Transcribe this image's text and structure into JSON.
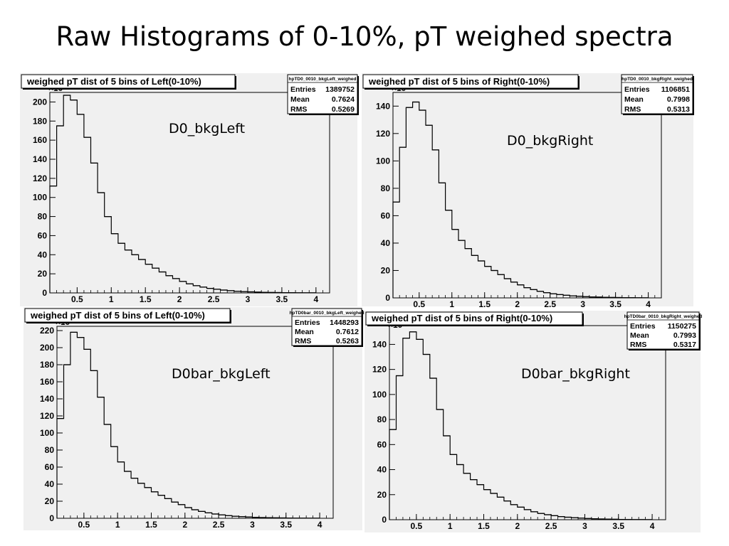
{
  "slide": {
    "title": "Raw Histograms of 0-10%, pT weighed spectra"
  },
  "chart_data": [
    {
      "type": "histogram",
      "title": "weighed pT dist of 5 bins of Left(0-10%)",
      "annotation": "D0_bkgLeft",
      "stats": {
        "name": "hpTD0_0010_bkgLeft_weighed",
        "entries": "1389752",
        "mean": "0.7624",
        "rms": "0.5269"
      },
      "y_multiplier": "×10³",
      "xlim": [
        0.1,
        4.2
      ],
      "ylim": [
        0,
        210
      ],
      "xticks": [
        0.5,
        1,
        1.5,
        2,
        2.5,
        3,
        3.5,
        4
      ],
      "yticks": [
        0,
        20,
        40,
        60,
        80,
        100,
        120,
        140,
        160,
        180,
        200
      ],
      "bin_edges": [
        0.1,
        0.2,
        0.3,
        0.4,
        0.5,
        0.6,
        0.7,
        0.8,
        0.9,
        1.0,
        1.1,
        1.2,
        1.3,
        1.4,
        1.5,
        1.6,
        1.7,
        1.8,
        1.9,
        2.0,
        2.1,
        2.2,
        2.3,
        2.4,
        2.5,
        2.6,
        2.7,
        2.8,
        2.9,
        3.0,
        3.1,
        3.2,
        3.3,
        3.4,
        3.5,
        3.6,
        3.7,
        3.8,
        3.9,
        4.0
      ],
      "values": [
        112,
        175,
        207,
        202,
        187,
        163,
        136,
        105,
        80,
        62,
        52,
        45,
        40,
        35,
        30,
        26,
        22,
        18,
        15,
        12,
        9.5,
        7.5,
        6,
        4.8,
        3.8,
        3,
        2.3,
        1.8,
        1.4,
        1.1,
        0.8,
        0.6,
        0.45,
        0.35,
        0.25,
        0.2,
        0.15,
        0.1,
        0.08
      ]
    },
    {
      "type": "histogram",
      "title": "weighed pT dist of 5 bins of Right(0-10%)",
      "annotation": "D0_bkgRight",
      "stats": {
        "name": "hpTD0_0010_bkgRight_weighed",
        "entries": "1106851",
        "mean": "0.7998",
        "rms": "0.5313"
      },
      "y_multiplier": "×10³",
      "xlim": [
        0.1,
        4.2
      ],
      "ylim": [
        0,
        150
      ],
      "xticks": [
        0.5,
        1,
        1.5,
        2,
        2.5,
        3,
        3.5,
        4
      ],
      "yticks": [
        0,
        20,
        40,
        60,
        80,
        100,
        120,
        140
      ],
      "bin_edges": [
        0.1,
        0.2,
        0.3,
        0.4,
        0.5,
        0.6,
        0.7,
        0.8,
        0.9,
        1.0,
        1.1,
        1.2,
        1.3,
        1.4,
        1.5,
        1.6,
        1.7,
        1.8,
        1.9,
        2.0,
        2.1,
        2.2,
        2.3,
        2.4,
        2.5,
        2.6,
        2.7,
        2.8,
        2.9,
        3.0,
        3.1,
        3.2,
        3.3,
        3.4,
        3.5,
        3.6,
        3.7,
        3.8,
        3.9,
        4.0
      ],
      "values": [
        70,
        110,
        139,
        143,
        137,
        126,
        108,
        84,
        64,
        50,
        42,
        36,
        31,
        27,
        23,
        20,
        17,
        14,
        11.5,
        9.5,
        7.5,
        6,
        4.8,
        3.8,
        3,
        2.4,
        1.9,
        1.5,
        1.2,
        0.9,
        0.7,
        0.55,
        0.42,
        0.32,
        0.24,
        0.18,
        0.14,
        0.1,
        0.07
      ]
    },
    {
      "type": "histogram",
      "title": "weighed pT dist of 5 bins of Left(0-10%)",
      "annotation": "D0bar_bkgLeft",
      "stats": {
        "name": "hpTD0bar_0010_bkgLeft_weighed",
        "entries": "1448293",
        "mean": "0.7612",
        "rms": "0.5263"
      },
      "y_multiplier": "×10³",
      "xlim": [
        0.1,
        4.2
      ],
      "ylim": [
        0,
        225
      ],
      "xticks": [
        0.5,
        1,
        1.5,
        2,
        2.5,
        3,
        3.5,
        4
      ],
      "yticks": [
        0,
        20,
        40,
        60,
        80,
        100,
        120,
        140,
        160,
        180,
        200,
        220
      ],
      "bin_edges": [
        0.1,
        0.2,
        0.3,
        0.4,
        0.5,
        0.6,
        0.7,
        0.8,
        0.9,
        1.0,
        1.1,
        1.2,
        1.3,
        1.4,
        1.5,
        1.6,
        1.7,
        1.8,
        1.9,
        2.0,
        2.1,
        2.2,
        2.3,
        2.4,
        2.5,
        2.6,
        2.7,
        2.8,
        2.9,
        3.0,
        3.1,
        3.2,
        3.3,
        3.4,
        3.5,
        3.6,
        3.7,
        3.8,
        3.9,
        4.0
      ],
      "values": [
        117,
        180,
        218,
        212,
        198,
        173,
        142,
        110,
        84,
        66,
        55,
        47,
        41,
        36,
        31,
        27,
        23,
        19,
        16,
        12.5,
        10,
        8,
        6.3,
        5,
        4,
        3.1,
        2.4,
        1.9,
        1.5,
        1.1,
        0.85,
        0.65,
        0.5,
        0.38,
        0.28,
        0.2,
        0.15,
        0.11,
        0.08
      ]
    },
    {
      "type": "histogram",
      "title": "weighed pT dist of 5 bins of Right(0-10%)",
      "annotation": "D0bar_bkgRight",
      "stats": {
        "name": "hpTD0bar_0010_bkgRight_weighed",
        "entries": "1150275",
        "mean": "0.7993",
        "rms": "0.5317"
      },
      "y_multiplier": "×10³",
      "xlim": [
        0.1,
        4.2
      ],
      "ylim": [
        0,
        155
      ],
      "xticks": [
        0.5,
        1,
        1.5,
        2,
        2.5,
        3,
        3.5,
        4
      ],
      "yticks": [
        0,
        20,
        40,
        60,
        80,
        100,
        120,
        140
      ],
      "bin_edges": [
        0.1,
        0.2,
        0.3,
        0.4,
        0.5,
        0.6,
        0.7,
        0.8,
        0.9,
        1.0,
        1.1,
        1.2,
        1.3,
        1.4,
        1.5,
        1.6,
        1.7,
        1.8,
        1.9,
        2.0,
        2.1,
        2.2,
        2.3,
        2.4,
        2.5,
        2.6,
        2.7,
        2.8,
        2.9,
        3.0,
        3.1,
        3.2,
        3.3,
        3.4,
        3.5,
        3.6,
        3.7,
        3.8,
        3.9,
        4.0
      ],
      "values": [
        72,
        115,
        145,
        150,
        144,
        132,
        113,
        88,
        67,
        52,
        44,
        37,
        32,
        28,
        24,
        21,
        18,
        15,
        12,
        10,
        8,
        6.3,
        5,
        4,
        3.2,
        2.5,
        2,
        1.6,
        1.25,
        0.95,
        0.72,
        0.56,
        0.43,
        0.33,
        0.25,
        0.19,
        0.14,
        0.1,
        0.07
      ]
    }
  ]
}
